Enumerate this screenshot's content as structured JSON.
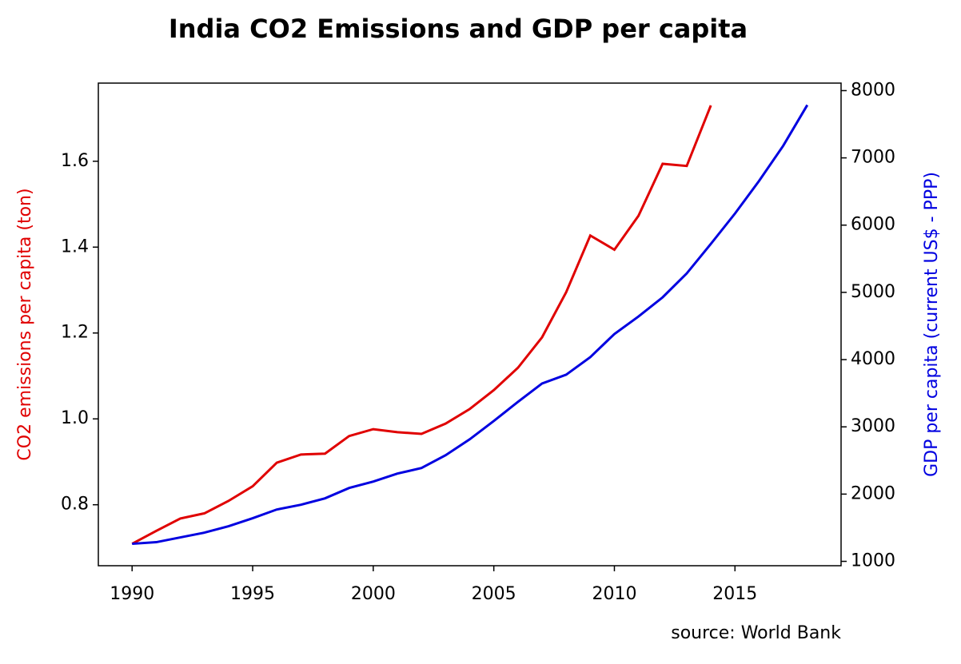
{
  "chart_data": {
    "type": "line",
    "title": "India CO2 Emissions and GDP per capita",
    "ylabel": "CO2 emissions per capita (ton)",
    "ylabel_color": "#e00000",
    "y2label": "GDP per capita (current US$ - PPP)",
    "y2label_color": "#0000e0",
    "annotation": "source: World Bank",
    "x": [
      1990,
      1991,
      1992,
      1993,
      1994,
      1995,
      1996,
      1997,
      1998,
      1999,
      2000,
      2001,
      2002,
      2003,
      2004,
      2005,
      2006,
      2007,
      2008,
      2009,
      2010,
      2011,
      2012,
      2013,
      2014,
      2015,
      2016,
      2017,
      2018
    ],
    "series": [
      {
        "color": "#e00000",
        "values": [
          0.709,
          0.739,
          0.768,
          0.78,
          0.809,
          0.843,
          0.898,
          0.917,
          0.919,
          0.96,
          0.976,
          0.969,
          0.965,
          0.989,
          1.023,
          1.067,
          1.119,
          1.19,
          1.295,
          1.427,
          1.394,
          1.473,
          1.594,
          1.589,
          1.73,
          null,
          null,
          null,
          null
        ]
      },
      {
        "color": "#0000e0",
        "axis": "y2",
        "values": [
          1261,
          1285,
          1356,
          1427,
          1522,
          1641,
          1771,
          1842,
          1937,
          2091,
          2186,
          2305,
          2388,
          2578,
          2815,
          3088,
          3372,
          3645,
          3776,
          4037,
          4381,
          4642,
          4926,
          5282,
          5721,
          6172,
          6658,
          7180,
          7786
        ]
      }
    ],
    "xlim": [
      1988.6,
      2019.4
    ],
    "xticks": [
      1990,
      1995,
      2000,
      2005,
      2010,
      2015
    ],
    "ylim": [
      0.658,
      1.782
    ],
    "yticks": [
      0.8,
      {
        "value": 1,
        "label": "1.0"
      },
      1.2,
      1.4,
      1.6
    ],
    "y2lim": [
      935,
      8112
    ],
    "y2ticks": [
      1000,
      2000,
      3000,
      4000,
      5000,
      6000,
      7000,
      8000
    ]
  }
}
